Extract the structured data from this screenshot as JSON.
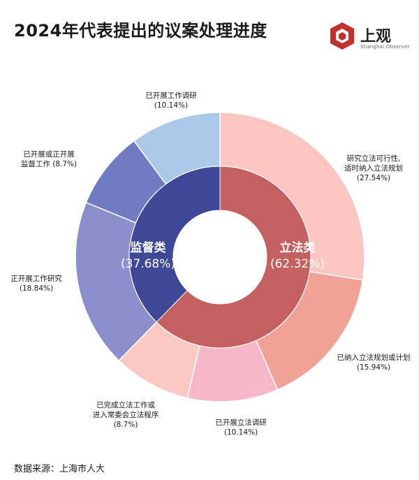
{
  "header": {
    "title": "2024年代表提出的议案处理进度",
    "brand_name": "上观",
    "brand_sub": "Shanghai Observer"
  },
  "footer": {
    "source": "数据来源：上海市人大"
  },
  "chart_data": {
    "type": "donut",
    "inner": [
      {
        "name": "立法类",
        "pct_label": "(62.32%)",
        "value": 62.32,
        "color": "#c4605f"
      },
      {
        "name": "监督类",
        "pct_label": "(37.68%)",
        "value": 37.68,
        "color": "#3f4896"
      }
    ],
    "outer": [
      {
        "name_lines": [
          "研究立法可行性,",
          "适时纳入立法规划"
        ],
        "pct_label": "(27.54%)",
        "value": 27.54,
        "color": "#fbc5c1"
      },
      {
        "name_lines": [
          "已纳入立法规划或计划"
        ],
        "pct_label": "(15.94%)",
        "value": 15.94,
        "color": "#f0a297"
      },
      {
        "name_lines": [
          "已开展立法调研"
        ],
        "pct_label": "(10.14%)",
        "value": 10.14,
        "color": "#f8b7c9"
      },
      {
        "name_lines": [
          "已完成立法工作或",
          "进入常委会立法程序"
        ],
        "pct_label": "(8.7%)",
        "value": 8.7,
        "color": "#fcc8c2"
      },
      {
        "name_lines": [
          "正开展工作研究"
        ],
        "pct_label": "(18.84%)",
        "value": 18.84,
        "color": "#8b8fcc"
      },
      {
        "name_lines": [
          "已开展或正开展",
          "监督工作 (8.7%)"
        ],
        "pct_label": "",
        "value": 8.7,
        "color": "#6f7cc1"
      },
      {
        "name_lines": [
          "已开展工作调研"
        ],
        "pct_label": "(10.14%)",
        "value": 10.14,
        "color": "#aac8e8"
      }
    ]
  }
}
